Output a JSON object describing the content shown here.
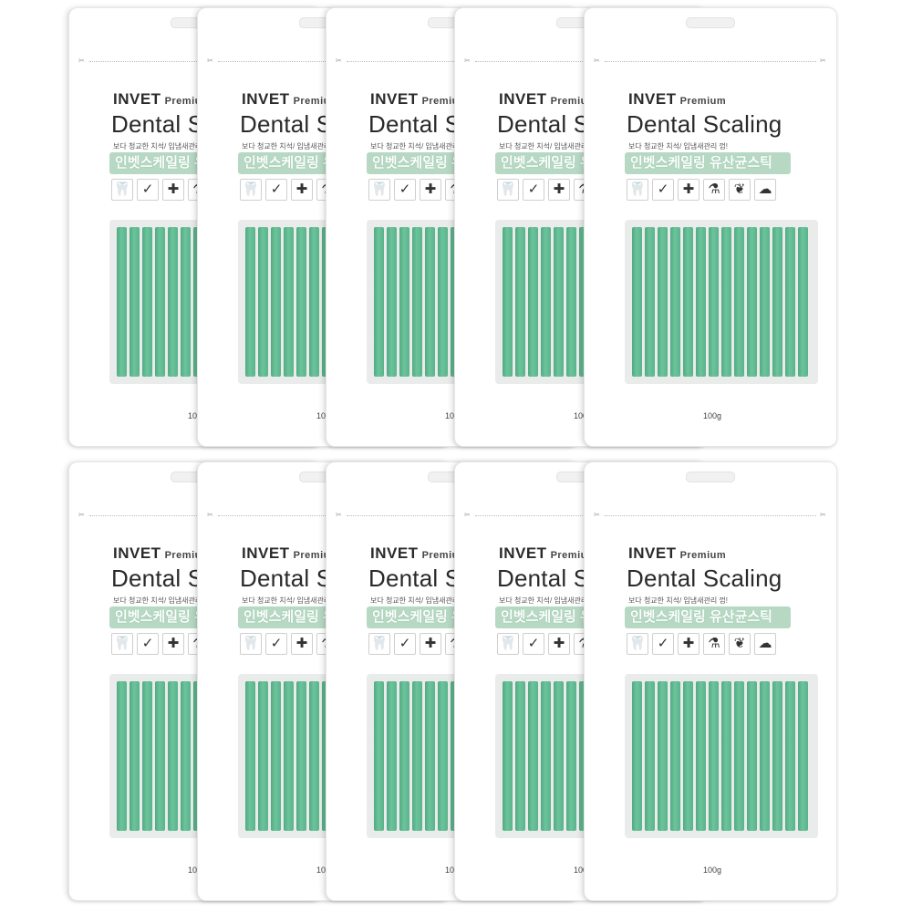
{
  "product": {
    "brand": "INVET",
    "premium": "Premium",
    "title": "Dental Scaling",
    "tagline": "보다 청교한 치석/ 입냄새관리 껌!",
    "banner": "인벳스케일링 유산균스틱",
    "weight": "100g",
    "stick_color": "#5fb890",
    "banner_color": "#b7d9c4",
    "icons": [
      "tooth-icon",
      "check-circle-icon",
      "plus-cross-icon",
      "bottle-icon",
      "leaf-icon",
      "brain-icon"
    ]
  },
  "grid": {
    "rows": 2,
    "packs_per_row": 5
  }
}
